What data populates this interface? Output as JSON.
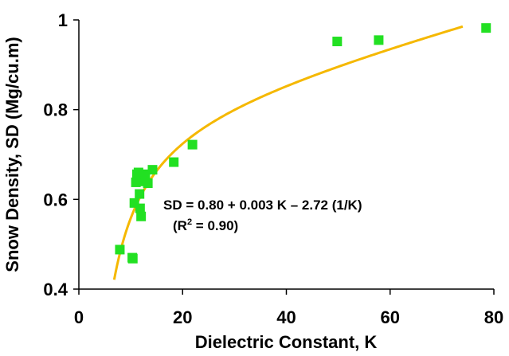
{
  "chart_data": {
    "type": "scatter",
    "xlabel": "Dielectric Constant, K",
    "ylabel": "Snow Density, SD (Mg/cu.m)",
    "xlim": [
      0,
      80
    ],
    "ylim": [
      0.4,
      1.0
    ],
    "x_ticks": [
      0,
      20,
      40,
      60,
      80
    ],
    "y_ticks": [
      0.4,
      0.6,
      0.8,
      1.0
    ],
    "x_tick_labels": [
      "0",
      "20",
      "40",
      "60",
      "80"
    ],
    "y_tick_labels": [
      "0.4",
      "0.6",
      "0.8",
      "1"
    ],
    "grid": false,
    "legend": "none",
    "colors": {
      "points": "#22e022",
      "fit": "#f5b800",
      "axes": "#000000"
    },
    "series": [
      {
        "type": "scatter",
        "x": [
          7.9,
          10.3,
          10.4,
          10.7,
          11.0,
          11.2,
          11.5,
          11.7,
          11.8,
          12.0,
          12.3,
          12.8,
          13.3,
          14.2,
          18.3,
          21.9,
          49.8,
          57.8,
          78.5
        ],
        "y": [
          0.488,
          0.47,
          0.468,
          0.592,
          0.638,
          0.656,
          0.66,
          0.612,
          0.58,
          0.562,
          0.64,
          0.656,
          0.636,
          0.666,
          0.683,
          0.722,
          0.952,
          0.955,
          0.982
        ]
      },
      {
        "type": "line",
        "equation": "SD = 0.80 + 0.003 K - 2.72 (1/K)",
        "x_range": [
          6.81,
          74.0
        ]
      }
    ],
    "annotations": {
      "equation": "SD = 0.80 + 0.003 K – 2.72 (1/K)",
      "r2_prefix": "(R",
      "r2_exp": "2",
      "r2_suffix": " = 0.90)"
    }
  }
}
